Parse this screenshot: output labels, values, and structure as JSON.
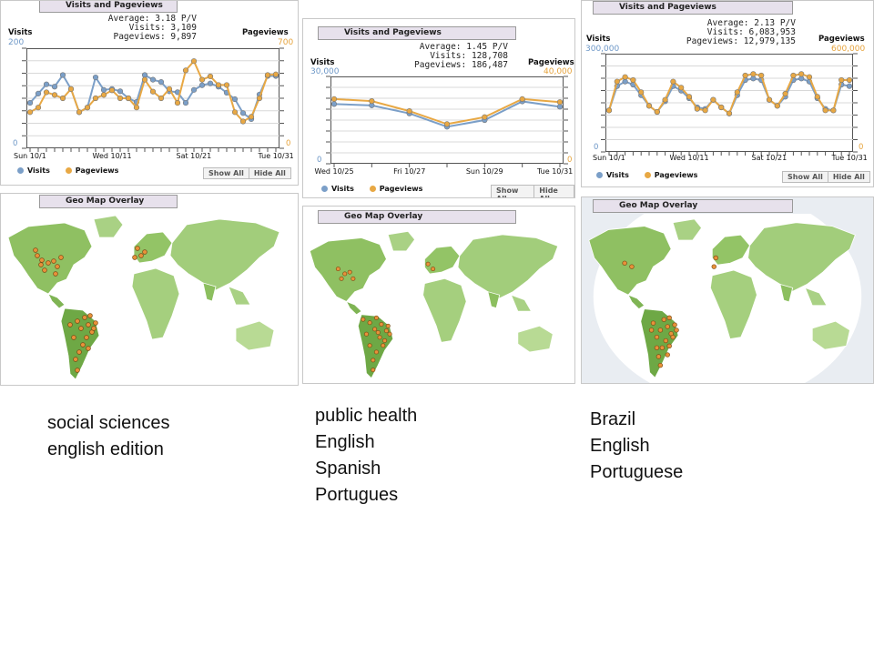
{
  "common": {
    "chart_tab_title": "Visits and Pageviews",
    "map_tab_title": "Geo Map Overlay",
    "visits_label": "Visits",
    "pageviews_label": "Pageviews",
    "show_all": "Show All",
    "hide_all": "Hide All",
    "zero": "0",
    "colors": {
      "visits": "#7b9fc8",
      "pageviews": "#e8a844",
      "map_land": "#9ccb6f",
      "marker": "#e8913a"
    }
  },
  "panels": [
    {
      "stats": {
        "average": "Average: 3.18 P/V",
        "visits": "Visits: 3,109",
        "pageviews": "Pageviews: 9,897"
      },
      "visits_max": "200",
      "pageviews_max": "700",
      "caption": [
        "social sciences",
        "english edition"
      ]
    },
    {
      "stats": {
        "average": "Average: 1.45 P/V",
        "visits": "Visits: 128,708",
        "pageviews": "Pageviews: 186,487"
      },
      "visits_max": "30,000",
      "pageviews_max": "40,000",
      "caption": [
        "public health",
        "English",
        "Spanish",
        "Portugues"
      ]
    },
    {
      "stats": {
        "average": "Average: 2.13 P/V",
        "visits": "Visits: 6,083,953",
        "pageviews": "Pageviews: 12,979,135"
      },
      "visits_max": "300,000",
      "pageviews_max": "600,000",
      "caption": [
        "Brazil",
        "English",
        "Portuguese"
      ]
    }
  ],
  "chart_data": [
    {
      "type": "line",
      "x": [
        "10/1",
        "10/2",
        "10/3",
        "10/4",
        "10/5",
        "10/6",
        "10/7",
        "10/8",
        "10/9",
        "10/10",
        "10/11",
        "10/12",
        "10/13",
        "10/14",
        "10/15",
        "10/16",
        "10/17",
        "10/18",
        "10/19",
        "10/20",
        "10/21",
        "10/22",
        "10/23",
        "10/24",
        "10/25",
        "10/26",
        "10/27",
        "10/28",
        "10/29",
        "10/30",
        "10/31"
      ],
      "xtick_labels": [
        "Sun 10/1",
        "Wed 10/11",
        "Sat 10/21",
        "Tue 10/31"
      ],
      "xtick_index": [
        0,
        10,
        20,
        30
      ],
      "series": [
        {
          "name": "Visits",
          "axis": "left",
          "values": [
            90,
            110,
            130,
            125,
            150,
            120,
            70,
            80,
            145,
            118,
            120,
            115,
            100,
            92,
            150,
            140,
            135,
            115,
            113,
            90,
            118,
            128,
            132,
            125,
            112,
            98,
            68,
            55,
            108,
            148,
            148
          ]
        },
        {
          "name": "Pageviews",
          "axis": "right",
          "values": [
            245,
            280,
            395,
            375,
            350,
            420,
            245,
            280,
            350,
            375,
            410,
            350,
            350,
            280,
            490,
            400,
            350,
            420,
            315,
            560,
            630,
            490,
            515,
            450,
            450,
            245,
            175,
            210,
            350,
            525,
            530
          ]
        }
      ],
      "ylim_left": [
        0,
        200
      ],
      "ylim_right": [
        0,
        700
      ],
      "grid": true
    },
    {
      "type": "line",
      "x": [
        "10/25",
        "10/26",
        "10/27",
        "10/28",
        "10/29",
        "10/30",
        "10/31"
      ],
      "xtick_labels": [
        "Wed 10/25",
        "Fri 10/27",
        "Sun 10/29",
        "Tue 10/31"
      ],
      "xtick_index": [
        0,
        2,
        4,
        6
      ],
      "series": [
        {
          "name": "Visits",
          "axis": "left",
          "values": [
            21000,
            20500,
            17500,
            12500,
            15000,
            22000,
            20000
          ]
        },
        {
          "name": "Pageviews",
          "axis": "right",
          "values": [
            30500,
            29500,
            24500,
            18000,
            21500,
            30500,
            29000
          ]
        }
      ],
      "ylim_left": [
        0,
        30000
      ],
      "ylim_right": [
        0,
        40000
      ],
      "grid": true
    },
    {
      "type": "line",
      "x": [
        "10/1",
        "10/2",
        "10/3",
        "10/4",
        "10/5",
        "10/6",
        "10/7",
        "10/8",
        "10/9",
        "10/10",
        "10/11",
        "10/12",
        "10/13",
        "10/14",
        "10/15",
        "10/16",
        "10/17",
        "10/18",
        "10/19",
        "10/20",
        "10/21",
        "10/22",
        "10/23",
        "10/24",
        "10/25",
        "10/26",
        "10/27",
        "10/28",
        "10/29",
        "10/30",
        "10/31"
      ],
      "xtick_labels": [
        "Sun 10/1",
        "Wed 10/11",
        "Sat 10/21",
        "Tue 10/31"
      ],
      "xtick_index": [
        0,
        10,
        20,
        30
      ],
      "series": [
        {
          "name": "Visits",
          "axis": "left",
          "values": [
            125000,
            205000,
            220000,
            210000,
            175000,
            140000,
            120000,
            155000,
            205000,
            190000,
            165000,
            135000,
            130000,
            160000,
            135000,
            115000,
            175000,
            225000,
            230000,
            225000,
            160000,
            140000,
            170000,
            225000,
            230000,
            220000,
            165000,
            130000,
            125000,
            210000,
            205000
          ]
        },
        {
          "name": "Pageviews",
          "axis": "right",
          "values": [
            250000,
            440000,
            470000,
            450000,
            370000,
            280000,
            240000,
            320000,
            440000,
            400000,
            340000,
            260000,
            250000,
            320000,
            270000,
            230000,
            370000,
            480000,
            490000,
            480000,
            320000,
            280000,
            360000,
            480000,
            490000,
            470000,
            340000,
            250000,
            250000,
            450000,
            450000
          ]
        }
      ],
      "ylim_left": [
        0,
        300000
      ],
      "ylim_right": [
        0,
        600000
      ],
      "grid": true
    }
  ]
}
